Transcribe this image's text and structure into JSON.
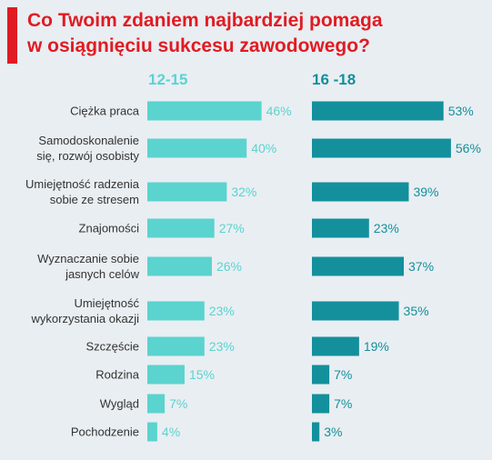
{
  "title": {
    "line1": "Co Twoim zdaniem najbardziej pomaga",
    "line2": "w osiągnięciu sukcesu zawodowego?"
  },
  "colors": {
    "background": "#e9eef2",
    "title": "#e11b22",
    "series_light": "#5bd3cf",
    "series_dark": "#13909c",
    "label": "#333333"
  },
  "chart_data": {
    "type": "bar",
    "orientation": "horizontal",
    "title": "Co Twoim zdaniem najbardziej pomaga w osiągnięciu sukcesu zawodowego?",
    "categories": [
      [
        "Ciężka praca"
      ],
      [
        "Samodoskonalenie",
        "się, rozwój osobisty"
      ],
      [
        "Umiejętność radzenia",
        "sobie ze stresem"
      ],
      [
        "Znajomości"
      ],
      [
        "Wyznaczanie sobie",
        "jasnych celów"
      ],
      [
        "Umiejętność",
        "wykorzystania okazji"
      ],
      [
        "Szczęście"
      ],
      [
        "Rodzina"
      ],
      [
        "Wygląd"
      ],
      [
        "Pochodzenie"
      ]
    ],
    "series": [
      {
        "name": "12-15",
        "values": [
          46,
          40,
          32,
          27,
          26,
          23,
          23,
          15,
          7,
          4
        ],
        "labels": [
          "46%",
          "40%",
          "32%",
          "27%",
          "26%",
          "23%",
          "23%",
          "15%",
          "7%",
          "4%"
        ]
      },
      {
        "name": "16 -18",
        "values": [
          53,
          56,
          39,
          23,
          37,
          35,
          19,
          7,
          7,
          3
        ],
        "labels": [
          "53%",
          "56%",
          "39%",
          "23%",
          "37%",
          "35%",
          "19%",
          "7%",
          "7%",
          "3%"
        ]
      }
    ],
    "unit": "%"
  }
}
